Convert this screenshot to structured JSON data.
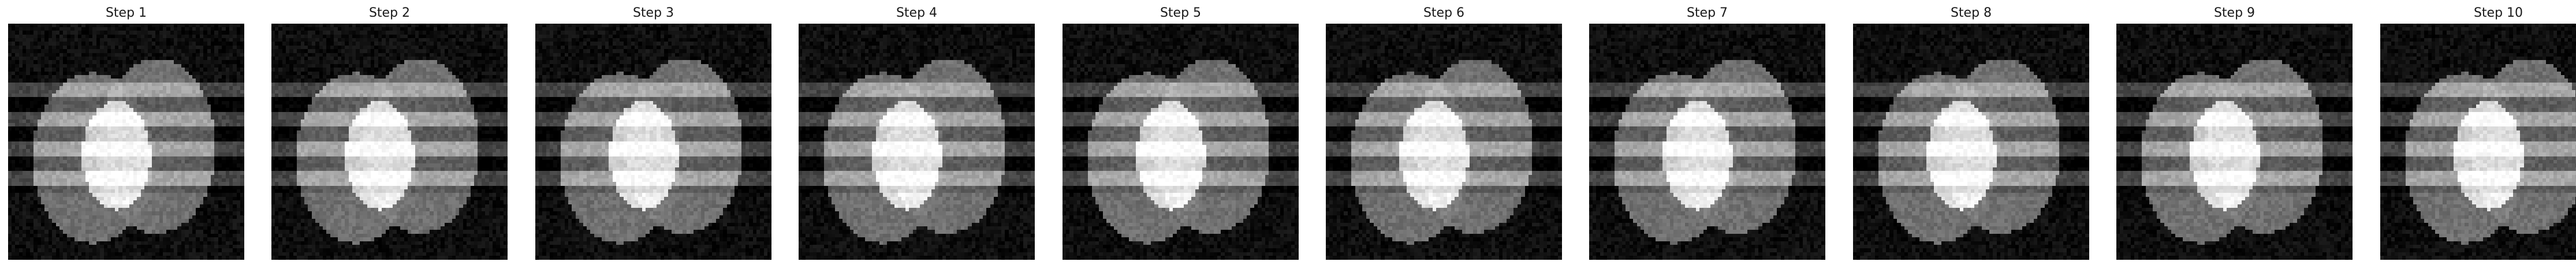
{
  "figure": {
    "panels": [
      {
        "title": "Step 1",
        "band_phase": 0
      },
      {
        "title": "Step 2",
        "band_phase": 0
      },
      {
        "title": "Step 3",
        "band_phase": 0
      },
      {
        "title": "Step 4",
        "band_phase": 0
      },
      {
        "title": "Step 5",
        "band_phase": 0
      },
      {
        "title": "Step 6",
        "band_phase": 0
      },
      {
        "title": "Step 7",
        "band_phase": 0
      },
      {
        "title": "Step 8",
        "band_phase": 0
      },
      {
        "title": "Step 9",
        "band_phase": 0
      },
      {
        "title": "Step 10",
        "band_phase": 0
      }
    ],
    "colors": {
      "background": "#ffffff",
      "title_text": "#1a1a1a",
      "image_dark": "#0d0d0d",
      "ellipse_gray": "#7a7a7a",
      "overlap_bright": "#e8e8e8"
    }
  }
}
